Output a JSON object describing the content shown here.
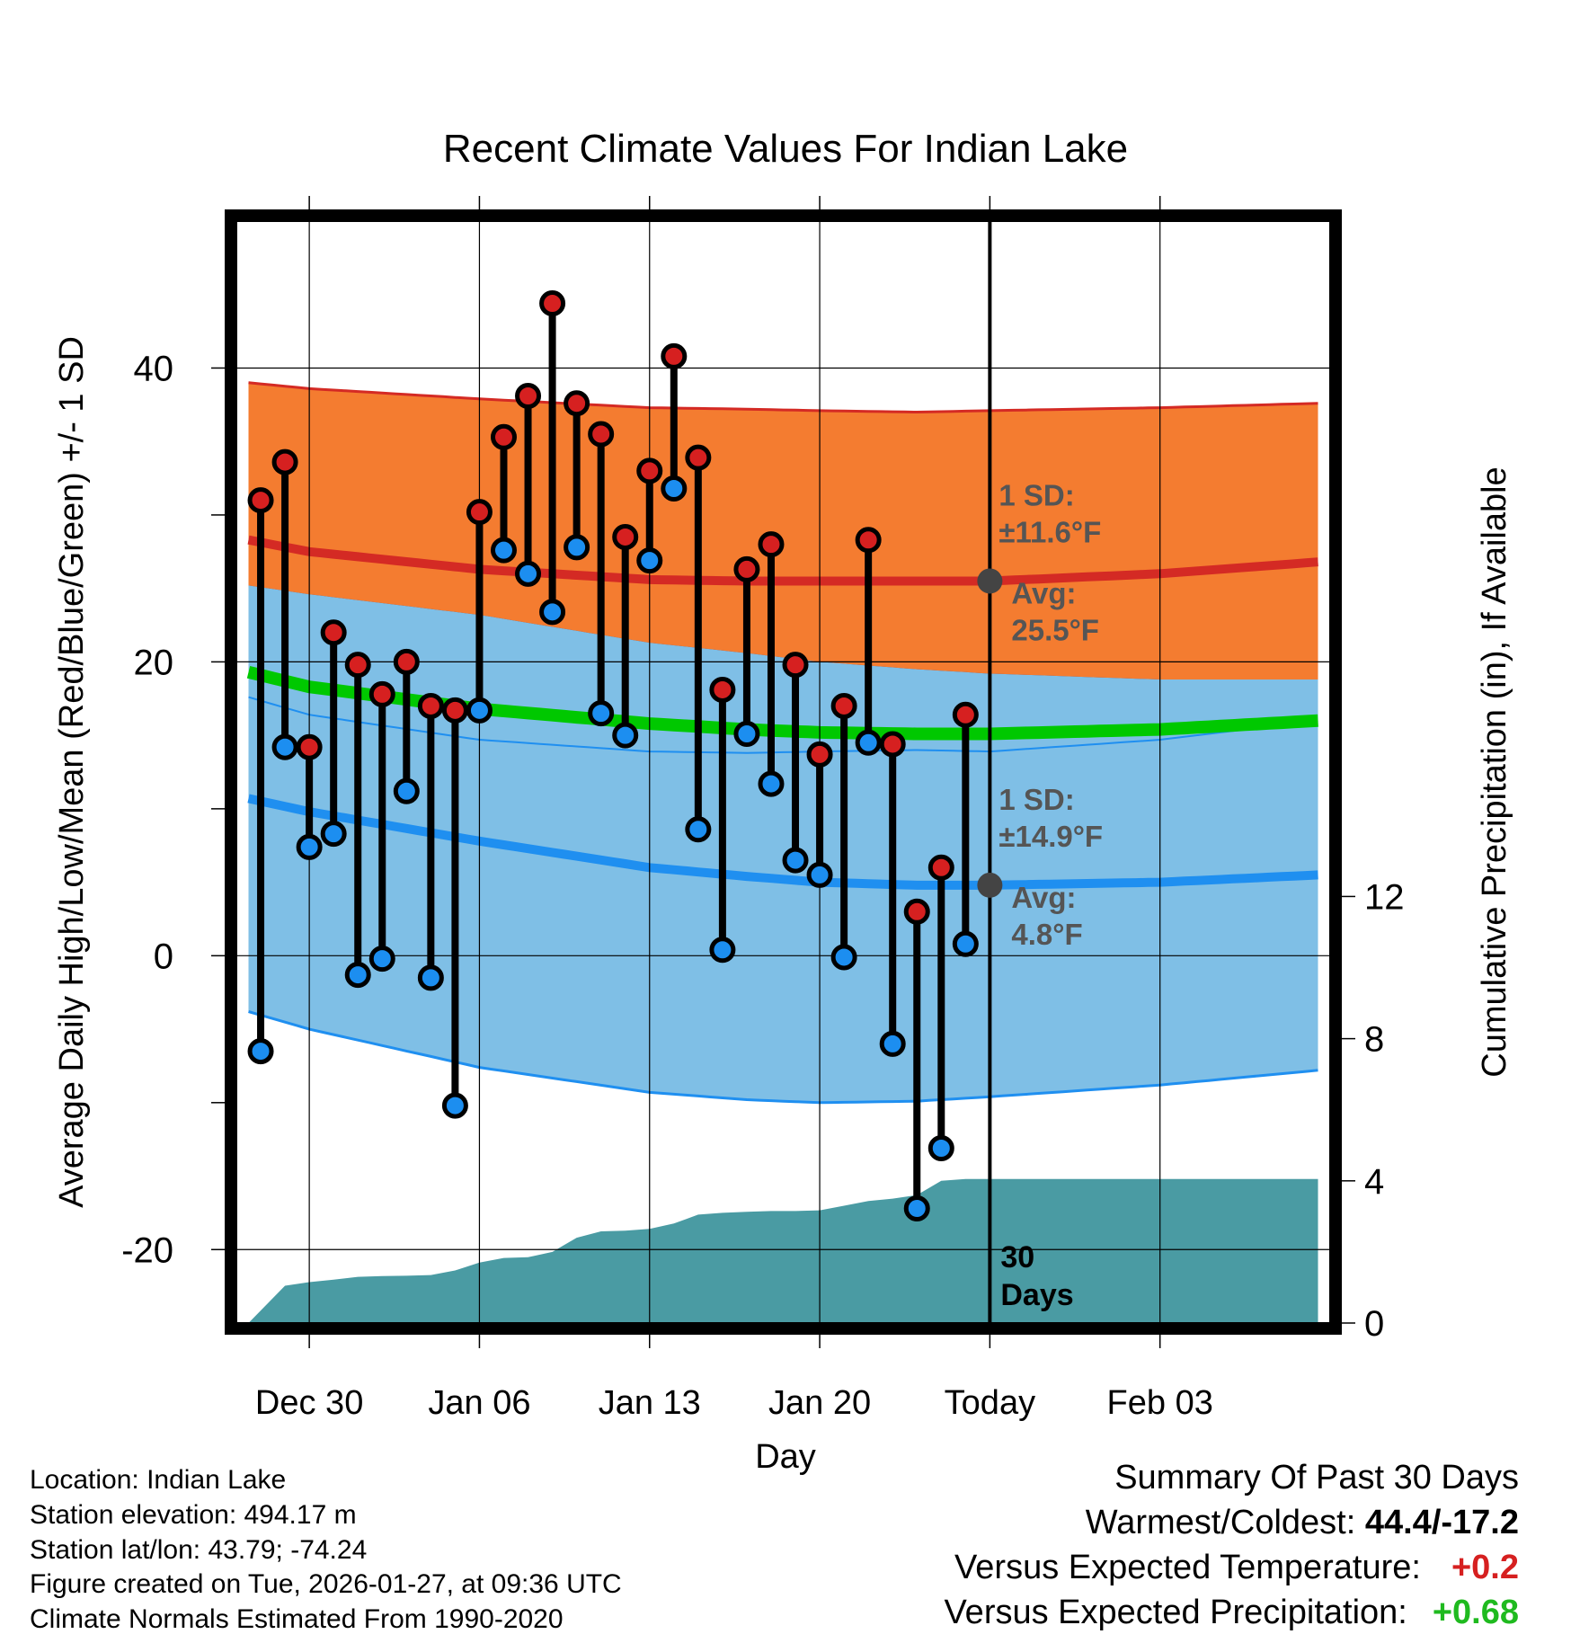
{
  "chart_data": {
    "type": "line",
    "title": "Recent Climate Values For Indian Lake",
    "xlabel": "Day",
    "ylabel_left": "Average Daily High/Low/Mean (Red/Blue/Green) +/- 1 SD",
    "ylabel_right": "Cumulative Precipitation (in), If Available",
    "xlim": [
      -4,
      41
    ],
    "ylim": [
      -25,
      50
    ],
    "ylim_right": [
      0,
      31
    ],
    "x_tick_positions": [
      -1,
      6,
      13,
      20,
      27,
      34
    ],
    "x_tick_labels": [
      "Dec 30",
      "Jan 06",
      "Jan 13",
      "Jan 20",
      "Today",
      "Feb 03"
    ],
    "y_ticks": [
      -20,
      0,
      20,
      40
    ],
    "y_tick_labels": [
      "-20",
      "0",
      "20",
      "40"
    ],
    "y_right_ticks": [
      0,
      4,
      8,
      12
    ],
    "y_right_tick_labels": [
      "0",
      "4",
      "8",
      "12"
    ],
    "today_x": 27,
    "today_label": "30\nDays",
    "grid": true,
    "normals": {
      "x": [
        -3.5,
        -1,
        6,
        13,
        17,
        20,
        24,
        27,
        34,
        40.5
      ],
      "avg_high": [
        28.3,
        27.5,
        26.3,
        25.6,
        25.5,
        25.5,
        25.5,
        25.5,
        26.0,
        26.8
      ],
      "high_sd_upper": [
        39.0,
        38.6,
        37.9,
        37.3,
        37.2,
        37.1,
        37.0,
        37.1,
        37.3,
        37.6
      ],
      "avg_mean": [
        19.3,
        18.3,
        16.8,
        15.8,
        15.4,
        15.2,
        15.1,
        15.1,
        15.4,
        16.0
      ],
      "avg_low": [
        10.7,
        9.8,
        7.8,
        6.0,
        5.4,
        5.0,
        4.8,
        4.8,
        5.0,
        5.5
      ],
      "low_sd_lower": [
        -3.8,
        -5.0,
        -7.6,
        -9.3,
        -9.8,
        -10.0,
        -9.9,
        -9.6,
        -8.8,
        -7.8
      ]
    },
    "annotations": [
      {
        "line1": "1 SD:",
        "line2": "±11.6°F",
        "line3": "Avg:",
        "line4": "25.5°F",
        "avg": 25.5
      },
      {
        "line1": "1 SD:",
        "line2": "±14.9°F",
        "line3": "Avg:",
        "line4": "4.8°F",
        "avg": 4.8
      }
    ],
    "series": [
      {
        "name": "Daily High",
        "color": "#d62020",
        "x": [
          -3,
          -2,
          -1,
          0,
          1,
          2,
          3,
          4,
          5,
          6,
          7,
          8,
          9,
          10,
          11,
          12,
          13,
          14,
          15,
          16,
          17,
          18,
          19,
          20,
          21,
          22,
          23,
          24,
          25,
          26
        ],
        "values": [
          31,
          33.6,
          14.2,
          22,
          19.8,
          17.8,
          20,
          17,
          16.7,
          30.2,
          35.3,
          38.1,
          44.4,
          37.6,
          35.5,
          28.5,
          33,
          40.8,
          33.9,
          18.1,
          26.3,
          28,
          19.8,
          13.7,
          17,
          28.3,
          14.4,
          3,
          6,
          16.4
        ]
      },
      {
        "name": "Daily Low",
        "color": "#1c8ef0",
        "x": [
          -3,
          -2,
          -1,
          0,
          1,
          2,
          3,
          4,
          5,
          6,
          7,
          8,
          9,
          10,
          11,
          12,
          13,
          14,
          15,
          16,
          17,
          18,
          19,
          20,
          21,
          22,
          23,
          24,
          25,
          26
        ],
        "values": [
          -6.5,
          14.2,
          7.4,
          8.3,
          -1.3,
          -0.2,
          11.2,
          -1.5,
          -10.2,
          16.7,
          27.6,
          26,
          23.4,
          27.8,
          16.5,
          15,
          26.9,
          31.8,
          8.6,
          0.4,
          15.1,
          11.7,
          6.5,
          5.5,
          -0.1,
          14.5,
          -6,
          -17.2,
          -13.1,
          0.8
        ]
      },
      {
        "name": "Cumulative Precipitation",
        "color": "#4a9ba3",
        "x": [
          -3.5,
          -2,
          -1,
          0,
          1,
          2,
          3,
          4,
          5,
          6,
          7,
          8,
          9,
          10,
          11,
          12,
          13,
          14,
          15,
          16,
          17,
          18,
          19,
          20,
          21,
          22,
          23,
          24,
          25,
          26,
          27,
          40.5
        ],
        "values": [
          0,
          1.05,
          1.15,
          1.22,
          1.3,
          1.32,
          1.33,
          1.35,
          1.48,
          1.7,
          1.83,
          1.85,
          2.0,
          2.4,
          2.58,
          2.6,
          2.65,
          2.8,
          3.05,
          3.1,
          3.13,
          3.15,
          3.15,
          3.17,
          3.3,
          3.43,
          3.5,
          3.6,
          4.0,
          4.05,
          4.05,
          4.05
        ]
      }
    ]
  },
  "info": {
    "location": "Location: Indian Lake",
    "elevation": "Station elevation: 494.17 m",
    "latlon": "Station lat/lon: 43.79; -74.24",
    "created": "Figure created on Tue, 2026-01-27, at 09:36 UTC",
    "normals": "Climate Normals Estimated From 1990-2020"
  },
  "summary": {
    "title": "Summary Of Past 30 Days",
    "warmest_label": "Warmest/Coldest: ",
    "warmest_value": "44.4/-17.2",
    "temp_label": "Versus Expected Temperature:",
    "temp_value": "+0.2",
    "precip_label": "Versus Expected Precipitation:",
    "precip_value": "+0.68"
  },
  "colors": {
    "high_band": "#f47c30",
    "high_line": "#d42a24",
    "mean_band": "#8e1015",
    "mean_line": "#00c800",
    "low_band": "#7fbfe6",
    "low_line": "#1f8ff0",
    "precip": "#4a9ba3",
    "high_marker": "#d62020",
    "low_marker": "#1c8ef0",
    "annotation": "#555555"
  }
}
